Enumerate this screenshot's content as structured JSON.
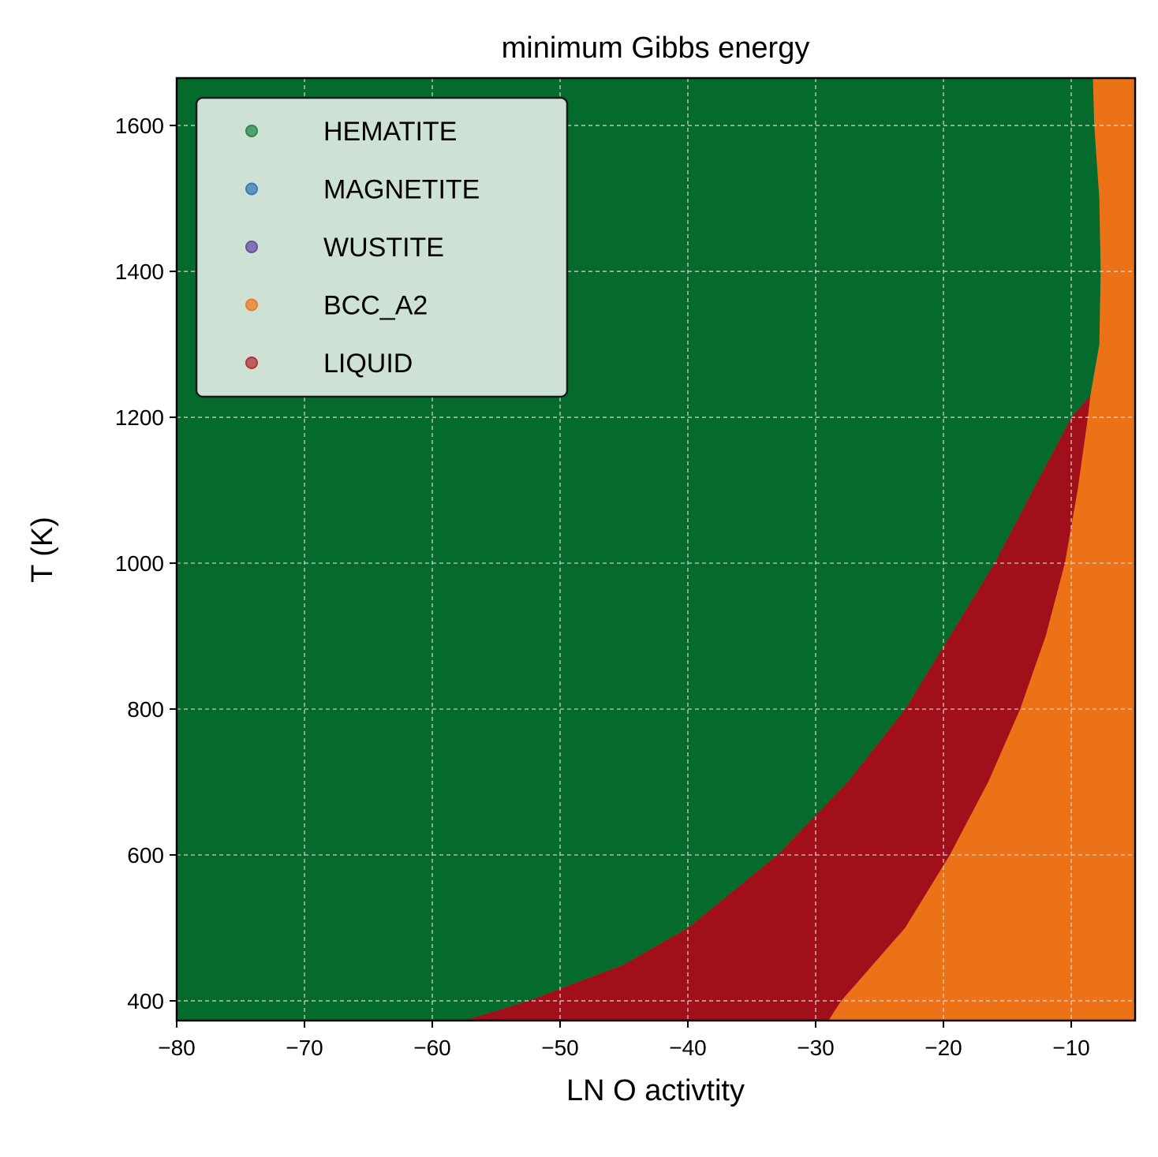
{
  "chart_data": {
    "type": "scatter",
    "title": "minimum Gibbs energy",
    "xlabel": "LN O activtity",
    "ylabel": "T (K)",
    "xlim": [
      -80,
      -5
    ],
    "ylim": [
      373,
      1665
    ],
    "x_ticks": [
      -80,
      -70,
      -60,
      -50,
      -40,
      -30,
      -20,
      -10
    ],
    "x_tick_labels": [
      "−80",
      "−70",
      "−60",
      "−50",
      "−40",
      "−30",
      "−20",
      "−10"
    ],
    "y_ticks": [
      400,
      600,
      800,
      1000,
      1200,
      1400,
      1600
    ],
    "y_tick_labels": [
      "400",
      "600",
      "800",
      "1000",
      "1200",
      "1400",
      "1600"
    ],
    "grid": true,
    "legend_position": "top-left",
    "series": [
      {
        "name": "HEMATITE",
        "color": "#2a8a4a",
        "fill": "#046b2d",
        "region": "low activity side, left of boundary"
      },
      {
        "name": "MAGNETITE",
        "color": "#3d7ab8",
        "fill": null,
        "region": "not visible"
      },
      {
        "name": "WUSTITE",
        "color": "#6a4fa0",
        "fill": null,
        "region": "not visible"
      },
      {
        "name": "BCC_A2",
        "color": "#ec7a26",
        "fill": "#ec7218",
        "region": "high activity side, right of boundary"
      },
      {
        "name": "LIQUID",
        "color": "#b5323a",
        "fill": "#a10f1a",
        "region": "band between HEMATITE and BCC_A2, below about 1230 K"
      }
    ],
    "boundaries": {
      "hematite_upper_edge": [
        {
          "T": 373,
          "x": -57.5
        },
        {
          "T": 400,
          "x": -52.5
        },
        {
          "T": 450,
          "x": -45
        },
        {
          "T": 500,
          "x": -40
        },
        {
          "T": 600,
          "x": -33
        },
        {
          "T": 700,
          "x": -27.5
        },
        {
          "T": 800,
          "x": -23
        },
        {
          "T": 900,
          "x": -19.5
        },
        {
          "T": 1000,
          "x": -16
        },
        {
          "T": 1100,
          "x": -13
        },
        {
          "T": 1200,
          "x": -10
        },
        {
          "T": 1230,
          "x": -8.5
        },
        {
          "T": 1300,
          "x": -7.8
        },
        {
          "T": 1400,
          "x": -7.7
        },
        {
          "T": 1500,
          "x": -7.8
        },
        {
          "T": 1600,
          "x": -8.2
        },
        {
          "T": 1665,
          "x": -8.3
        }
      ],
      "liquid_upper_edge": [
        {
          "T": 373,
          "x": -29
        },
        {
          "T": 400,
          "x": -28
        },
        {
          "T": 450,
          "x": -25.5
        },
        {
          "T": 500,
          "x": -23
        },
        {
          "T": 600,
          "x": -19.5
        },
        {
          "T": 700,
          "x": -16.5
        },
        {
          "T": 800,
          "x": -14
        },
        {
          "T": 900,
          "x": -12
        },
        {
          "T": 1000,
          "x": -10.5
        },
        {
          "T": 1100,
          "x": -9.5
        },
        {
          "T": 1200,
          "x": -8.7
        },
        {
          "T": 1230,
          "x": -8.5
        }
      ]
    }
  }
}
